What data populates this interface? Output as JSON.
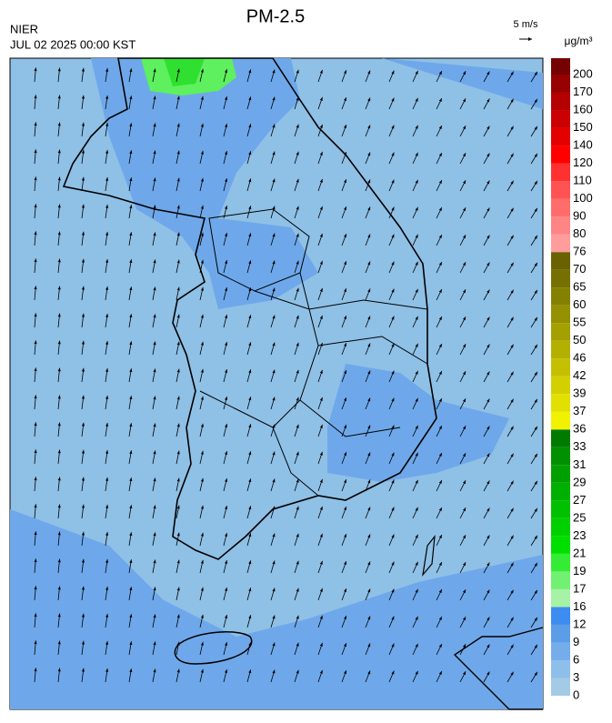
{
  "header": {
    "title": "PM-2.5",
    "agency": "NIER",
    "datetime": "JUL 02 2025 00:00 KST",
    "wind_reference": "5 m/s"
  },
  "colorbar": {
    "unit": "μg/m³",
    "levels": [
      0,
      3,
      6,
      9,
      12,
      16,
      17,
      19,
      21,
      23,
      25,
      27,
      29,
      31,
      33,
      36,
      37,
      39,
      42,
      46,
      50,
      55,
      60,
      65,
      70,
      76,
      80,
      90,
      100,
      110,
      120,
      140,
      150,
      160,
      170,
      200
    ],
    "colors": [
      "#a3cbe6",
      "#8ebfea",
      "#74adea",
      "#5c9de8",
      "#3d8df0",
      "#a6f2a6",
      "#72f072",
      "#34ec34",
      "#00e000",
      "#00d000",
      "#00c000",
      "#00b000",
      "#00a000",
      "#009000",
      "#007a00",
      "#f2f200",
      "#e2e000",
      "#d4d000",
      "#c4c000",
      "#b4b000",
      "#a4a000",
      "#949000",
      "#848000",
      "#767000",
      "#6a6200",
      "#ff9c9c",
      "#ff8484",
      "#ff6c6c",
      "#ff5252",
      "#ff3030",
      "#ff0000",
      "#e40000",
      "#cc0000",
      "#b40000",
      "#960000",
      "#740000"
    ]
  }
}
